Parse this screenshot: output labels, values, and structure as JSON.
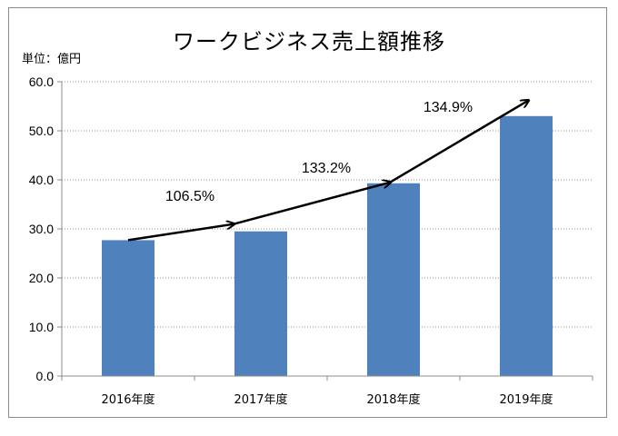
{
  "chart_data": {
    "type": "bar",
    "title": "ワークビジネス売上額推移",
    "unit_label": "単位：億円",
    "categories": [
      "2016年度",
      "2017年度",
      "2018年度",
      "2019年度"
    ],
    "values": [
      27.7,
      29.5,
      39.3,
      53.0
    ],
    "ylim": [
      0,
      60
    ],
    "yticks": [
      "0.0",
      "10.0",
      "20.0",
      "30.0",
      "40.0",
      "50.0",
      "60.0"
    ],
    "grid": true,
    "bar_color": "#4f81bd",
    "growth_labels": [
      "106.5%",
      "133.2%",
      "134.9%"
    ],
    "trend_arrow_color": "#000000"
  }
}
